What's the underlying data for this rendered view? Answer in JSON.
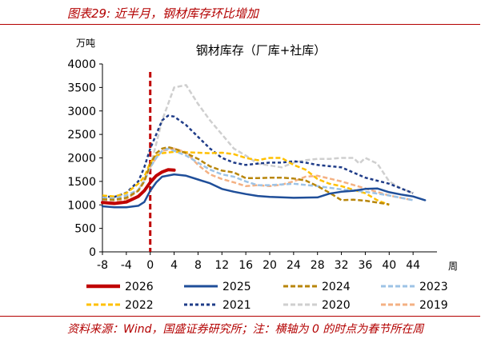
{
  "header": {
    "title": "图表29:  近半月，钢材库存环比增加"
  },
  "footer": {
    "source": "资料来源：Wind，国盛证券研究所；注：横轴为 0 的时点为春节所在周"
  },
  "chart_data": {
    "type": "line",
    "title": "钢材库存（厂库+社库）",
    "ylabel": "万吨",
    "xlabel": "周",
    "xlim": [
      -8,
      48
    ],
    "ylim": [
      0,
      4000
    ],
    "x_ticks": [
      -8,
      -4,
      0,
      4,
      8,
      12,
      16,
      20,
      24,
      28,
      32,
      36,
      40,
      44
    ],
    "y_ticks": [
      0,
      500,
      1000,
      1500,
      2000,
      2500,
      3000,
      3500,
      4000
    ],
    "vertical_marker": {
      "x": 0,
      "color": "#c00000"
    },
    "series": [
      {
        "name": "2026",
        "color": "#c00000",
        "dash": "solid",
        "width": 4,
        "x": [
          -8,
          -6,
          -4,
          -2,
          -1,
          0,
          1,
          2,
          3,
          4
        ],
        "y": [
          1050,
          1030,
          1060,
          1180,
          1300,
          1480,
          1620,
          1700,
          1750,
          1740
        ]
      },
      {
        "name": "2025",
        "color": "#1f4e99",
        "dash": "solid",
        "width": 2.5,
        "x": [
          -8,
          -6,
          -4,
          -2,
          -1,
          0,
          1,
          2,
          4,
          6,
          8,
          10,
          12,
          14,
          16,
          18,
          20,
          24,
          28,
          30,
          32,
          34,
          36,
          38,
          40,
          42,
          44,
          46
        ],
        "y": [
          970,
          950,
          950,
          980,
          1060,
          1300,
          1480,
          1600,
          1650,
          1620,
          1540,
          1460,
          1340,
          1280,
          1230,
          1190,
          1170,
          1150,
          1160,
          1240,
          1280,
          1300,
          1340,
          1350,
          1270,
          1220,
          1180,
          1100
        ]
      },
      {
        "name": "2024",
        "color": "#b8860b",
        "dash": "6,3",
        "width": 2.5,
        "x": [
          -8,
          -6,
          -4,
          -2,
          -1,
          0,
          1,
          2,
          3,
          4,
          6,
          8,
          10,
          12,
          14,
          16,
          18,
          20,
          22,
          24,
          26,
          28,
          30,
          32,
          34,
          36,
          38,
          40
        ],
        "y": [
          1120,
          1110,
          1150,
          1300,
          1500,
          1860,
          2100,
          2200,
          2230,
          2200,
          2100,
          1980,
          1820,
          1730,
          1690,
          1570,
          1570,
          1580,
          1580,
          1560,
          1520,
          1400,
          1260,
          1100,
          1110,
          1090,
          1050,
          1010
        ]
      },
      {
        "name": "2023",
        "color": "#9dc3e6",
        "dash": "6,3",
        "width": 2.5,
        "x": [
          -8,
          -6,
          -4,
          -2,
          -1,
          0,
          1,
          2,
          3,
          4,
          6,
          8,
          10,
          12,
          14,
          16,
          18,
          20,
          24,
          28,
          32,
          36,
          40,
          44
        ],
        "y": [
          1150,
          1140,
          1200,
          1320,
          1500,
          1800,
          2000,
          2150,
          2200,
          2150,
          2050,
          1900,
          1750,
          1650,
          1600,
          1500,
          1420,
          1420,
          1450,
          1400,
          1330,
          1280,
          1200,
          1100
        ]
      },
      {
        "name": "2022",
        "color": "#ffc000",
        "dash": "6,3",
        "width": 2.5,
        "x": [
          -8,
          -6,
          -4,
          -2,
          -1,
          0,
          1,
          2,
          4,
          6,
          8,
          10,
          12,
          14,
          16,
          18,
          20,
          22,
          24,
          26,
          28,
          30,
          32,
          34,
          36,
          38,
          40
        ],
        "y": [
          1200,
          1180,
          1250,
          1450,
          1600,
          1900,
          2050,
          2100,
          2130,
          2120,
          2110,
          2100,
          2110,
          2080,
          2000,
          1950,
          2000,
          2000,
          1850,
          1750,
          1550,
          1450,
          1400,
          1320,
          1250,
          1100,
          1000
        ]
      },
      {
        "name": "2021",
        "color": "#1f3c88",
        "dash": "4,3",
        "width": 2.5,
        "x": [
          -8,
          -6,
          -4,
          -2,
          -1,
          0,
          1,
          2,
          3,
          4,
          6,
          8,
          10,
          12,
          14,
          16,
          18,
          20,
          22,
          24,
          26,
          28,
          32,
          36,
          40,
          44
        ],
        "y": [
          1180,
          1170,
          1260,
          1500,
          1800,
          2200,
          2500,
          2800,
          2900,
          2880,
          2700,
          2450,
          2200,
          2000,
          1900,
          1850,
          1880,
          1900,
          1900,
          1930,
          1900,
          1850,
          1800,
          1580,
          1450,
          1250
        ]
      },
      {
        "name": "2020",
        "color": "#cfcfcf",
        "dash": "6,3",
        "width": 2.5,
        "x": [
          -8,
          -6,
          -4,
          -2,
          0,
          2,
          4,
          6,
          8,
          10,
          12,
          14,
          16,
          18,
          20,
          22,
          24,
          26,
          28,
          30,
          32,
          34,
          35,
          36,
          38,
          40,
          42,
          44
        ],
        "y": [
          1100,
          1100,
          1150,
          1300,
          1800,
          2800,
          3500,
          3550,
          3150,
          2800,
          2500,
          2200,
          2050,
          1880,
          1840,
          1800,
          1900,
          1950,
          1980,
          1980,
          2000,
          2000,
          1880,
          2000,
          1880,
          1500,
          1350,
          1250
        ]
      },
      {
        "name": "2019",
        "color": "#f4b183",
        "dash": "6,3",
        "width": 2.5,
        "x": [
          -8,
          -6,
          -4,
          -2,
          -1,
          0,
          1,
          2,
          4,
          6,
          8,
          10,
          12,
          14,
          16,
          18,
          20,
          22,
          24,
          26,
          28,
          32,
          36,
          40,
          44
        ],
        "y": [
          1080,
          1070,
          1120,
          1300,
          1550,
          1800,
          2000,
          2150,
          2200,
          2120,
          1850,
          1650,
          1550,
          1480,
          1400,
          1420,
          1400,
          1430,
          1500,
          1600,
          1620,
          1500,
          1350,
          1200,
          1100
        ]
      }
    ],
    "legend_order": [
      "2026",
      "2025",
      "2024",
      "2023",
      "2022",
      "2021",
      "2020",
      "2019"
    ],
    "legend_placement": "bottom",
    "grid": false
  }
}
